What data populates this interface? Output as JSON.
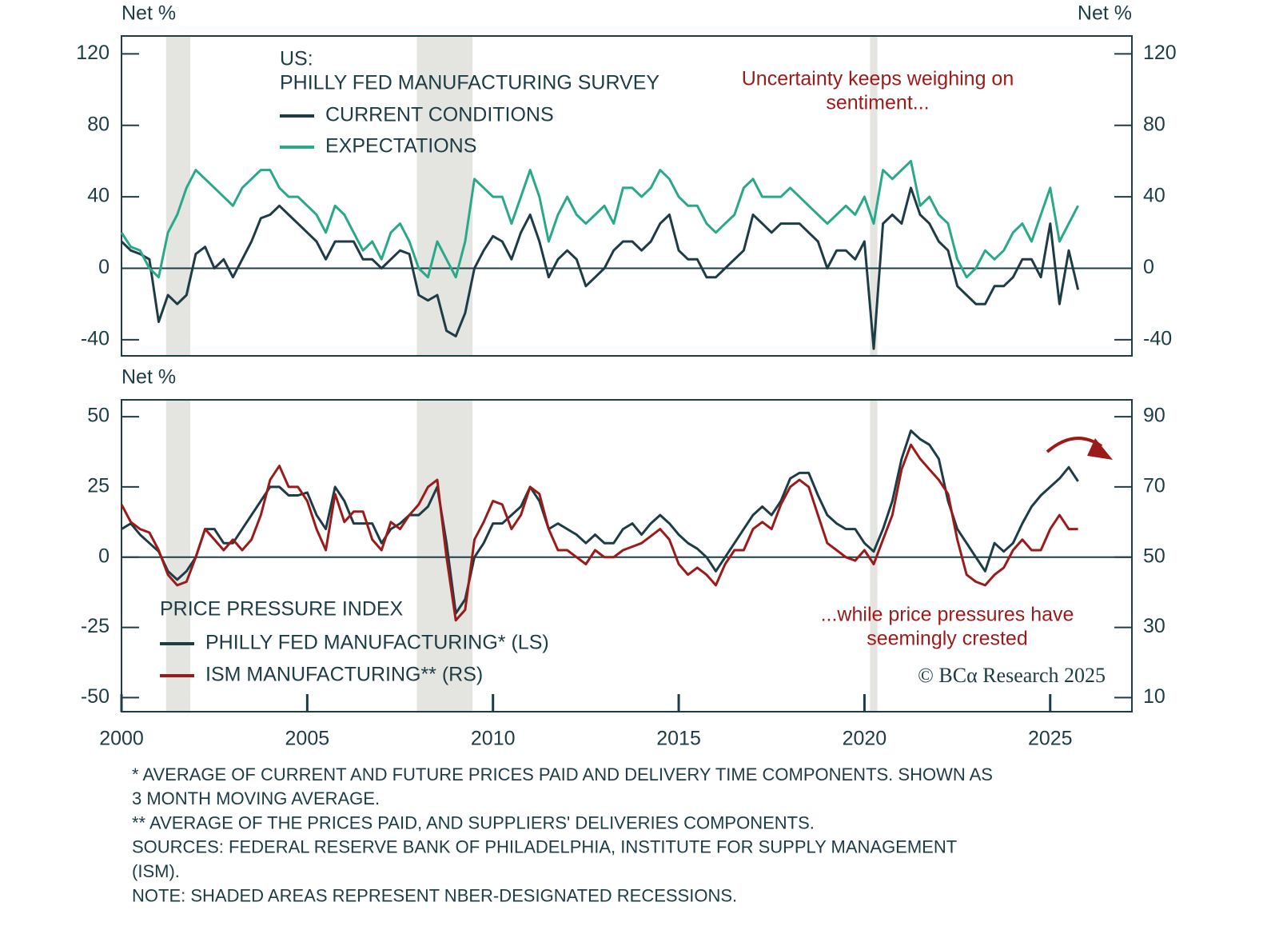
{
  "chart_data": [
    {
      "type": "line",
      "y_label": "Net %",
      "y2_label": "Net %",
      "legend_title": [
        "US:",
        "PHILLY FED MANUFACTURING SURVEY"
      ],
      "annotation": [
        "Uncertainty keeps weighing on",
        "sentiment..."
      ],
      "xlim": [
        2000,
        2027.2
      ],
      "ylim": [
        -49,
        130
      ],
      "yticks": [
        -40,
        0,
        40,
        80,
        120
      ],
      "y2lim": [
        -49,
        130
      ],
      "y2ticks": [
        -40,
        0,
        40,
        80,
        120
      ],
      "shading": [
        [
          2001.2,
          2001.85
        ],
        [
          2007.95,
          2009.45
        ],
        [
          2020.15,
          2020.35
        ]
      ],
      "x": [
        2000,
        2000.25,
        2000.5,
        2000.75,
        2001,
        2001.25,
        2001.5,
        2001.75,
        2002,
        2002.25,
        2002.5,
        2002.75,
        2003,
        2003.25,
        2003.5,
        2003.75,
        2004,
        2004.25,
        2004.5,
        2004.75,
        2005,
        2005.25,
        2005.5,
        2005.75,
        2006,
        2006.25,
        2006.5,
        2006.75,
        2007,
        2007.25,
        2007.5,
        2007.75,
        2008,
        2008.25,
        2008.5,
        2008.75,
        2009,
        2009.25,
        2009.5,
        2009.75,
        2010,
        2010.25,
        2010.5,
        2010.75,
        2011,
        2011.25,
        2011.5,
        2011.75,
        2012,
        2012.25,
        2012.5,
        2012.75,
        2013,
        2013.25,
        2013.5,
        2013.75,
        2014,
        2014.25,
        2014.5,
        2014.75,
        2015,
        2015.25,
        2015.5,
        2015.75,
        2016,
        2016.25,
        2016.5,
        2016.75,
        2017,
        2017.25,
        2017.5,
        2017.75,
        2018,
        2018.25,
        2018.5,
        2018.75,
        2019,
        2019.25,
        2019.5,
        2019.75,
        2020,
        2020.25,
        2020.5,
        2020.75,
        2021,
        2021.25,
        2021.5,
        2021.75,
        2022,
        2022.25,
        2022.5,
        2022.75,
        2023,
        2023.25,
        2023.5,
        2023.75,
        2024,
        2024.25,
        2024.5,
        2024.75,
        2025,
        2025.25,
        2025.5,
        2025.75
      ],
      "series": [
        {
          "name": "CURRENT CONDITIONS",
          "color": "#1d3c45",
          "values": [
            15,
            10,
            8,
            5,
            -30,
            -15,
            -20,
            -15,
            8,
            12,
            0,
            5,
            -5,
            5,
            15,
            28,
            30,
            35,
            30,
            25,
            20,
            15,
            5,
            15,
            15,
            15,
            5,
            5,
            0,
            5,
            10,
            8,
            -15,
            -18,
            -15,
            -35,
            -38,
            -25,
            0,
            10,
            18,
            15,
            5,
            20,
            30,
            15,
            -5,
            5,
            10,
            5,
            -10,
            -5,
            0,
            10,
            15,
            15,
            10,
            15,
            25,
            30,
            10,
            5,
            5,
            -5,
            -5,
            0,
            5,
            10,
            30,
            25,
            20,
            25,
            25,
            25,
            20,
            15,
            0,
            10,
            10,
            5,
            15,
            -45,
            25,
            30,
            25,
            45,
            30,
            25,
            15,
            10,
            -10,
            -15,
            -20,
            -20,
            -10,
            -10,
            -5,
            5,
            5,
            -5,
            25,
            -20,
            10,
            -12
          ]
        },
        {
          "name": "EXPECTATIONS",
          "color": "#2aa88a",
          "values": [
            20,
            12,
            10,
            0,
            -5,
            20,
            30,
            45,
            55,
            50,
            45,
            40,
            35,
            45,
            50,
            55,
            55,
            45,
            40,
            40,
            35,
            30,
            20,
            35,
            30,
            20,
            10,
            15,
            5,
            20,
            25,
            15,
            0,
            -5,
            15,
            5,
            -5,
            15,
            50,
            45,
            40,
            40,
            25,
            40,
            55,
            40,
            15,
            30,
            40,
            30,
            25,
            30,
            35,
            25,
            45,
            45,
            40,
            45,
            55,
            50,
            40,
            35,
            35,
            25,
            20,
            25,
            30,
            45,
            50,
            40,
            40,
            40,
            45,
            40,
            35,
            30,
            25,
            30,
            35,
            30,
            40,
            25,
            55,
            50,
            55,
            60,
            35,
            40,
            30,
            25,
            5,
            -5,
            0,
            10,
            5,
            10,
            20,
            25,
            15,
            30,
            45,
            15,
            25,
            35
          ]
        }
      ]
    },
    {
      "type": "line",
      "y_label": "Net %",
      "legend_title": [
        "PRICE PRESSURE INDEX"
      ],
      "annotation": [
        "...while price pressures have",
        "seemingly crested"
      ],
      "credit": "© BCα Research 2025",
      "xlim": [
        2000,
        2027.2
      ],
      "xticks": [
        2000,
        2005,
        2010,
        2015,
        2020,
        2025
      ],
      "ylim": [
        -55,
        56
      ],
      "yticks": [
        -50,
        -25,
        0,
        25,
        50
      ],
      "y2lim": [
        6,
        94.8
      ],
      "y2ticks": [
        10,
        30,
        50,
        70,
        90
      ],
      "shading": [
        [
          2001.2,
          2001.85
        ],
        [
          2007.95,
          2009.45
        ],
        [
          2020.15,
          2020.35
        ]
      ],
      "x": [
        2000,
        2000.25,
        2000.5,
        2000.75,
        2001,
        2001.25,
        2001.5,
        2001.75,
        2002,
        2002.25,
        2002.5,
        2002.75,
        2003,
        2003.25,
        2003.5,
        2003.75,
        2004,
        2004.25,
        2004.5,
        2004.75,
        2005,
        2005.25,
        2005.5,
        2005.75,
        2006,
        2006.25,
        2006.5,
        2006.75,
        2007,
        2007.25,
        2007.5,
        2007.75,
        2008,
        2008.25,
        2008.5,
        2008.75,
        2009,
        2009.25,
        2009.5,
        2009.75,
        2010,
        2010.25,
        2010.5,
        2010.75,
        2011,
        2011.25,
        2011.5,
        2011.75,
        2012,
        2012.25,
        2012.5,
        2012.75,
        2013,
        2013.25,
        2013.5,
        2013.75,
        2014,
        2014.25,
        2014.5,
        2014.75,
        2015,
        2015.25,
        2015.5,
        2015.75,
        2016,
        2016.25,
        2016.5,
        2016.75,
        2017,
        2017.25,
        2017.5,
        2017.75,
        2018,
        2018.25,
        2018.5,
        2018.75,
        2019,
        2019.25,
        2019.5,
        2019.75,
        2020,
        2020.25,
        2020.5,
        2020.75,
        2021,
        2021.25,
        2021.5,
        2021.75,
        2022,
        2022.25,
        2022.5,
        2022.75,
        2023,
        2023.25,
        2023.5,
        2023.75,
        2024,
        2024.25,
        2024.5,
        2024.75,
        2025,
        2025.25,
        2025.5,
        2025.75
      ],
      "series": [
        {
          "name": "PHILLY FED MANUFACTURING* (LS)",
          "color": "#1d3c45",
          "values": [
            10,
            12,
            8,
            5,
            2,
            -5,
            -8,
            -5,
            0,
            10,
            10,
            5,
            5,
            10,
            15,
            20,
            25,
            25,
            22,
            22,
            23,
            15,
            10,
            25,
            20,
            12,
            12,
            12,
            5,
            10,
            12,
            15,
            15,
            18,
            25,
            5,
            -20,
            -15,
            0,
            5,
            12,
            12,
            15,
            18,
            25,
            20,
            10,
            12,
            10,
            8,
            5,
            8,
            5,
            5,
            10,
            12,
            8,
            12,
            15,
            12,
            8,
            5,
            3,
            0,
            -5,
            0,
            5,
            10,
            15,
            18,
            15,
            20,
            28,
            30,
            30,
            22,
            15,
            12,
            10,
            10,
            5,
            2,
            10,
            20,
            35,
            45,
            42,
            40,
            35,
            20,
            10,
            5,
            0,
            -5,
            5,
            2,
            5,
            12,
            18,
            22,
            25,
            28,
            32,
            27
          ]
        },
        {
          "name": "ISM MANUFACTURING** (RS)",
          "color": "#9b1b1b",
          "axis": "y2",
          "values": [
            65,
            60,
            58,
            57,
            52,
            45,
            42,
            43,
            50,
            58,
            55,
            52,
            55,
            52,
            55,
            62,
            72,
            76,
            70,
            70,
            66,
            58,
            52,
            68,
            60,
            63,
            63,
            55,
            52,
            60,
            58,
            62,
            65,
            70,
            72,
            50,
            32,
            35,
            55,
            60,
            66,
            65,
            58,
            62,
            70,
            68,
            58,
            52,
            52,
            50,
            48,
            52,
            50,
            50,
            52,
            53,
            54,
            56,
            58,
            55,
            48,
            45,
            47,
            45,
            42,
            48,
            52,
            52,
            58,
            60,
            58,
            65,
            70,
            72,
            70,
            62,
            54,
            52,
            50,
            49,
            52,
            48,
            55,
            62,
            75,
            82,
            78,
            75,
            72,
            68,
            55,
            45,
            43,
            42,
            45,
            47,
            52,
            55,
            52,
            52,
            58,
            62,
            58,
            58
          ]
        }
      ]
    }
  ],
  "notes": [
    "* AVERAGE OF CURRENT AND FUTURE PRICES PAID AND DELIVERY TIME COMPONENTS. SHOWN AS",
    "3 MONTH MOVING AVERAGE.",
    "** AVERAGE OF THE PRICES PAID, AND SUPPLIERS' DELIVERIES COMPONENTS.",
    "SOURCES: FEDERAL RESERVE BANK OF PHILADELPHIA, INSTITUTE FOR SUPPLY MANAGEMENT",
    "(ISM).",
    "NOTE: SHADED AREAS REPRESENT NBER-DESIGNATED RECESSIONS."
  ]
}
